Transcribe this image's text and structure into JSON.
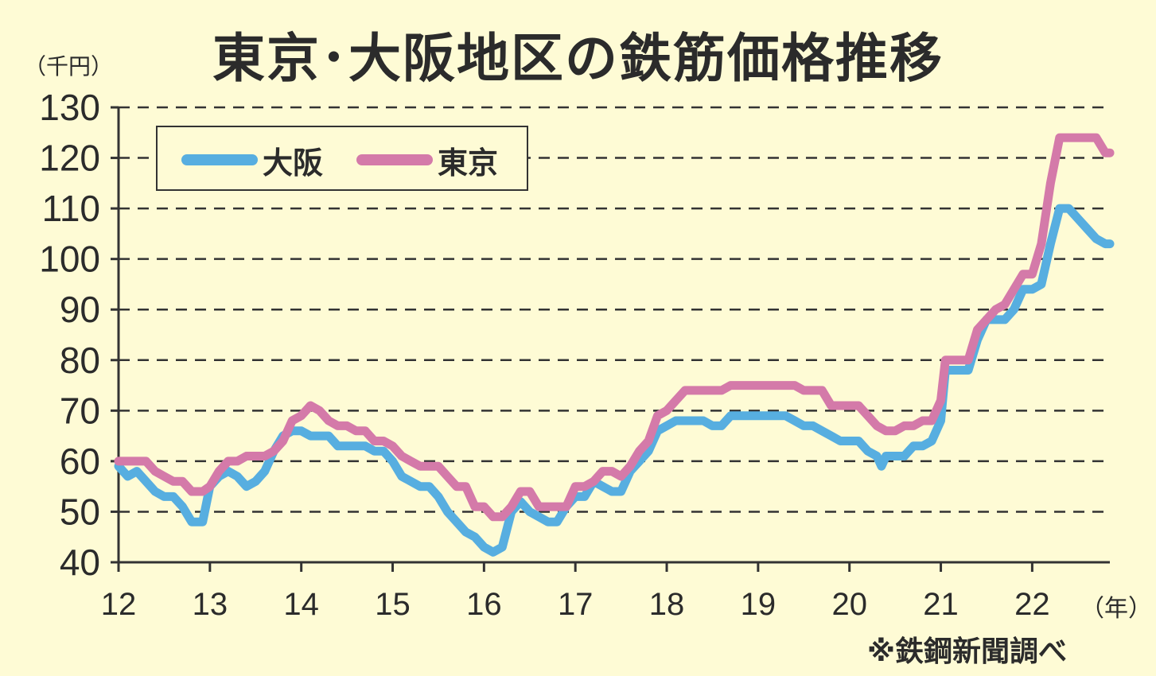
{
  "title": "東京･大阪地区の鉄筋価格推移",
  "y_unit": "（千円）",
  "x_unit": "（年）",
  "source": "※鉄鋼新聞調べ",
  "colors": {
    "background": "#fefbd5",
    "osaka": "#57aee0",
    "tokyo": "#d47aa9",
    "text": "#2b2b2b"
  },
  "chart_data": {
    "type": "line",
    "ylim": [
      40,
      130
    ],
    "yticks": [
      "40",
      "50",
      "60",
      "70",
      "80",
      "90",
      "100",
      "110",
      "120",
      "130"
    ],
    "xlim": [
      12,
      22.85
    ],
    "xticks": [
      "12",
      "13",
      "14",
      "15",
      "16",
      "17",
      "18",
      "19",
      "20",
      "21",
      "22"
    ],
    "grid": true,
    "grid_style": "dashed",
    "legend_position": "top-left",
    "series": [
      {
        "name": "大阪",
        "color": "#57aee0",
        "points": [
          [
            12.0,
            59
          ],
          [
            12.1,
            57
          ],
          [
            12.2,
            58
          ],
          [
            12.3,
            56
          ],
          [
            12.4,
            54
          ],
          [
            12.5,
            53
          ],
          [
            12.6,
            53
          ],
          [
            12.7,
            51
          ],
          [
            12.8,
            48
          ],
          [
            12.92,
            48
          ],
          [
            13.0,
            55
          ],
          [
            13.1,
            57
          ],
          [
            13.2,
            58
          ],
          [
            13.3,
            57
          ],
          [
            13.4,
            55
          ],
          [
            13.5,
            56
          ],
          [
            13.6,
            58
          ],
          [
            13.7,
            62
          ],
          [
            13.8,
            65
          ],
          [
            13.9,
            66
          ],
          [
            14.0,
            66
          ],
          [
            14.1,
            65
          ],
          [
            14.2,
            65
          ],
          [
            14.3,
            65
          ],
          [
            14.4,
            63
          ],
          [
            14.5,
            63
          ],
          [
            14.6,
            63
          ],
          [
            14.7,
            63
          ],
          [
            14.8,
            62
          ],
          [
            14.9,
            62
          ],
          [
            15.0,
            60
          ],
          [
            15.1,
            57
          ],
          [
            15.2,
            56
          ],
          [
            15.3,
            55
          ],
          [
            15.4,
            55
          ],
          [
            15.5,
            53
          ],
          [
            15.6,
            50
          ],
          [
            15.7,
            48
          ],
          [
            15.8,
            46
          ],
          [
            15.9,
            45
          ],
          [
            16.0,
            43
          ],
          [
            16.1,
            42
          ],
          [
            16.2,
            43
          ],
          [
            16.3,
            50
          ],
          [
            16.4,
            52
          ],
          [
            16.5,
            50
          ],
          [
            16.6,
            49
          ],
          [
            16.7,
            48
          ],
          [
            16.8,
            48
          ],
          [
            16.9,
            51
          ],
          [
            17.0,
            53
          ],
          [
            17.1,
            53
          ],
          [
            17.2,
            56
          ],
          [
            17.3,
            55
          ],
          [
            17.4,
            54
          ],
          [
            17.5,
            54
          ],
          [
            17.6,
            58
          ],
          [
            17.7,
            60
          ],
          [
            17.8,
            62
          ],
          [
            17.9,
            66
          ],
          [
            18.0,
            67
          ],
          [
            18.1,
            68
          ],
          [
            18.2,
            68
          ],
          [
            18.3,
            68
          ],
          [
            18.4,
            68
          ],
          [
            18.5,
            67
          ],
          [
            18.6,
            67
          ],
          [
            18.7,
            69
          ],
          [
            18.8,
            69
          ],
          [
            18.9,
            69
          ],
          [
            19.0,
            69
          ],
          [
            19.1,
            69
          ],
          [
            19.2,
            69
          ],
          [
            19.3,
            69
          ],
          [
            19.4,
            68
          ],
          [
            19.5,
            67
          ],
          [
            19.6,
            67
          ],
          [
            19.7,
            66
          ],
          [
            19.8,
            65
          ],
          [
            19.9,
            64
          ],
          [
            20.0,
            64
          ],
          [
            20.1,
            64
          ],
          [
            20.2,
            62
          ],
          [
            20.3,
            61
          ],
          [
            20.35,
            59
          ],
          [
            20.4,
            61
          ],
          [
            20.5,
            61
          ],
          [
            20.6,
            61
          ],
          [
            20.7,
            63
          ],
          [
            20.8,
            63
          ],
          [
            20.9,
            64
          ],
          [
            21.0,
            68
          ],
          [
            21.05,
            78
          ],
          [
            21.1,
            78
          ],
          [
            21.2,
            78
          ],
          [
            21.3,
            78
          ],
          [
            21.4,
            84
          ],
          [
            21.5,
            88
          ],
          [
            21.6,
            88
          ],
          [
            21.7,
            88
          ],
          [
            21.8,
            90
          ],
          [
            21.9,
            94
          ],
          [
            22.0,
            94
          ],
          [
            22.1,
            95
          ],
          [
            22.2,
            103
          ],
          [
            22.3,
            110
          ],
          [
            22.4,
            110
          ],
          [
            22.5,
            108
          ],
          [
            22.6,
            106
          ],
          [
            22.7,
            104
          ],
          [
            22.8,
            103
          ],
          [
            22.85,
            103
          ]
        ]
      },
      {
        "name": "東京",
        "color": "#d47aa9",
        "points": [
          [
            12.0,
            60
          ],
          [
            12.1,
            60
          ],
          [
            12.2,
            60
          ],
          [
            12.3,
            60
          ],
          [
            12.4,
            58
          ],
          [
            12.5,
            57
          ],
          [
            12.6,
            56
          ],
          [
            12.7,
            56
          ],
          [
            12.8,
            54
          ],
          [
            12.92,
            54
          ],
          [
            13.0,
            55
          ],
          [
            13.1,
            58
          ],
          [
            13.2,
            60
          ],
          [
            13.3,
            60
          ],
          [
            13.4,
            61
          ],
          [
            13.5,
            61
          ],
          [
            13.6,
            61
          ],
          [
            13.7,
            62
          ],
          [
            13.8,
            64
          ],
          [
            13.9,
            68
          ],
          [
            14.0,
            69
          ],
          [
            14.1,
            71
          ],
          [
            14.2,
            70
          ],
          [
            14.3,
            68
          ],
          [
            14.4,
            67
          ],
          [
            14.5,
            67
          ],
          [
            14.6,
            66
          ],
          [
            14.7,
            66
          ],
          [
            14.8,
            64
          ],
          [
            14.9,
            64
          ],
          [
            15.0,
            63
          ],
          [
            15.1,
            61
          ],
          [
            15.2,
            60
          ],
          [
            15.3,
            59
          ],
          [
            15.4,
            59
          ],
          [
            15.5,
            59
          ],
          [
            15.6,
            57
          ],
          [
            15.7,
            55
          ],
          [
            15.8,
            55
          ],
          [
            15.9,
            51
          ],
          [
            16.0,
            51
          ],
          [
            16.1,
            49
          ],
          [
            16.2,
            49
          ],
          [
            16.3,
            51
          ],
          [
            16.4,
            54
          ],
          [
            16.5,
            54
          ],
          [
            16.6,
            51
          ],
          [
            16.7,
            51
          ],
          [
            16.8,
            51
          ],
          [
            16.9,
            51
          ],
          [
            17.0,
            55
          ],
          [
            17.1,
            55
          ],
          [
            17.2,
            56
          ],
          [
            17.3,
            58
          ],
          [
            17.4,
            58
          ],
          [
            17.5,
            57
          ],
          [
            17.6,
            59
          ],
          [
            17.7,
            62
          ],
          [
            17.8,
            64
          ],
          [
            17.9,
            69
          ],
          [
            18.0,
            70
          ],
          [
            18.1,
            72
          ],
          [
            18.2,
            74
          ],
          [
            18.3,
            74
          ],
          [
            18.4,
            74
          ],
          [
            18.5,
            74
          ],
          [
            18.6,
            74
          ],
          [
            18.7,
            75
          ],
          [
            18.8,
            75
          ],
          [
            18.9,
            75
          ],
          [
            19.0,
            75
          ],
          [
            19.1,
            75
          ],
          [
            19.2,
            75
          ],
          [
            19.3,
            75
          ],
          [
            19.4,
            75
          ],
          [
            19.5,
            74
          ],
          [
            19.6,
            74
          ],
          [
            19.7,
            74
          ],
          [
            19.8,
            71
          ],
          [
            19.9,
            71
          ],
          [
            20.0,
            71
          ],
          [
            20.1,
            71
          ],
          [
            20.2,
            69
          ],
          [
            20.3,
            67
          ],
          [
            20.4,
            66
          ],
          [
            20.5,
            66
          ],
          [
            20.6,
            67
          ],
          [
            20.7,
            67
          ],
          [
            20.8,
            68
          ],
          [
            20.9,
            68
          ],
          [
            21.0,
            72
          ],
          [
            21.05,
            80
          ],
          [
            21.1,
            80
          ],
          [
            21.2,
            80
          ],
          [
            21.3,
            80
          ],
          [
            21.4,
            86
          ],
          [
            21.5,
            88
          ],
          [
            21.6,
            90
          ],
          [
            21.7,
            91
          ],
          [
            21.8,
            94
          ],
          [
            21.9,
            97
          ],
          [
            22.0,
            97
          ],
          [
            22.1,
            103
          ],
          [
            22.2,
            115
          ],
          [
            22.3,
            124
          ],
          [
            22.4,
            124
          ],
          [
            22.5,
            124
          ],
          [
            22.6,
            124
          ],
          [
            22.7,
            124
          ],
          [
            22.8,
            121
          ],
          [
            22.85,
            121
          ]
        ]
      }
    ]
  }
}
